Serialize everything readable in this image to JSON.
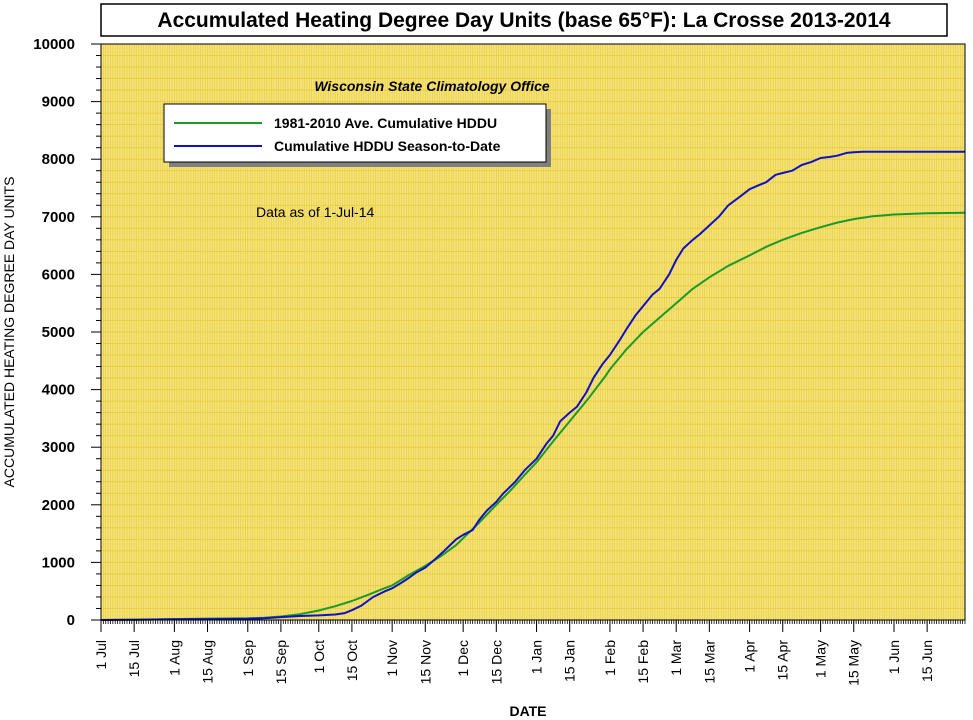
{
  "chart_data": {
    "type": "line",
    "title": "Accumulated Heating Degree Day Units (base 65°F): La Crosse 2013-2014",
    "subtitle": "Wisconsin State Climatology Office",
    "annotation": "Data as of 1-Jul-14",
    "xlabel": "DATE",
    "ylabel": "ACCUMULATED HEATING DEGREE DAY UNITS",
    "ylim": [
      0,
      10000
    ],
    "yticks": [
      0,
      1000,
      2000,
      3000,
      4000,
      5000,
      6000,
      7000,
      8000,
      9000,
      10000
    ],
    "x_unit": "days since 1 Jul",
    "xlim": [
      0,
      365
    ],
    "xticks": [
      {
        "label": "1 Jul",
        "day": 0
      },
      {
        "label": "15 Jul",
        "day": 14
      },
      {
        "label": "1 Aug",
        "day": 31
      },
      {
        "label": "15 Aug",
        "day": 45
      },
      {
        "label": "1 Sep",
        "day": 62
      },
      {
        "label": "15 Sep",
        "day": 76
      },
      {
        "label": "1 Oct",
        "day": 92
      },
      {
        "label": "15 Oct",
        "day": 106
      },
      {
        "label": "1 Nov",
        "day": 123
      },
      {
        "label": "15 Nov",
        "day": 137
      },
      {
        "label": "1 Dec",
        "day": 153
      },
      {
        "label": "15 Dec",
        "day": 167
      },
      {
        "label": "1 Jan",
        "day": 184
      },
      {
        "label": "15 Jan",
        "day": 198
      },
      {
        "label": "1 Feb",
        "day": 215
      },
      {
        "label": "15 Feb",
        "day": 229
      },
      {
        "label": "1 Mar",
        "day": 243
      },
      {
        "label": "15 Mar",
        "day": 257
      },
      {
        "label": "1 Apr",
        "day": 274
      },
      {
        "label": "15 Apr",
        "day": 288
      },
      {
        "label": "1 May",
        "day": 304
      },
      {
        "label": "15 May",
        "day": 318
      },
      {
        "label": "1 Jun",
        "day": 335
      },
      {
        "label": "15 Jun",
        "day": 349
      }
    ],
    "grid": true,
    "legend_position": "top-left",
    "colors": {
      "plot_background": "#f6e27a",
      "grid": "#e5cc3a"
    },
    "series": [
      {
        "name": "1981-2010 Ave. Cumulative HDDU",
        "color": "#1a9a2a",
        "points": [
          [
            0,
            0
          ],
          [
            14,
            5
          ],
          [
            31,
            15
          ],
          [
            45,
            25
          ],
          [
            62,
            30
          ],
          [
            69,
            40
          ],
          [
            76,
            60
          ],
          [
            84,
            100
          ],
          [
            92,
            165
          ],
          [
            99,
            240
          ],
          [
            106,
            330
          ],
          [
            113,
            440
          ],
          [
            119,
            540
          ],
          [
            123,
            600
          ],
          [
            130,
            780
          ],
          [
            137,
            940
          ],
          [
            144,
            1120
          ],
          [
            150,
            1300
          ],
          [
            153,
            1420
          ],
          [
            160,
            1700
          ],
          [
            167,
            2000
          ],
          [
            173,
            2250
          ],
          [
            179,
            2520
          ],
          [
            184,
            2740
          ],
          [
            191,
            3100
          ],
          [
            198,
            3450
          ],
          [
            206,
            3850
          ],
          [
            213,
            4230
          ],
          [
            215,
            4350
          ],
          [
            222,
            4700
          ],
          [
            229,
            5000
          ],
          [
            236,
            5250
          ],
          [
            243,
            5500
          ],
          [
            250,
            5750
          ],
          [
            257,
            5950
          ],
          [
            265,
            6150
          ],
          [
            274,
            6330
          ],
          [
            281,
            6480
          ],
          [
            288,
            6600
          ],
          [
            296,
            6720
          ],
          [
            304,
            6820
          ],
          [
            311,
            6900
          ],
          [
            318,
            6960
          ],
          [
            326,
            7010
          ],
          [
            335,
            7040
          ],
          [
            349,
            7060
          ],
          [
            365,
            7070
          ]
        ]
      },
      {
        "name": "Cumulative HDDU Season-to-Date",
        "color": "#1010c8",
        "points": [
          [
            0,
            0
          ],
          [
            14,
            5
          ],
          [
            31,
            12
          ],
          [
            45,
            15
          ],
          [
            62,
            20
          ],
          [
            69,
            30
          ],
          [
            76,
            50
          ],
          [
            84,
            70
          ],
          [
            92,
            80
          ],
          [
            99,
            95
          ],
          [
            103,
            120
          ],
          [
            106,
            170
          ],
          [
            110,
            250
          ],
          [
            115,
            400
          ],
          [
            120,
            500
          ],
          [
            123,
            550
          ],
          [
            127,
            650
          ],
          [
            130,
            730
          ],
          [
            133,
            820
          ],
          [
            137,
            910
          ],
          [
            141,
            1050
          ],
          [
            145,
            1200
          ],
          [
            150,
            1400
          ],
          [
            153,
            1480
          ],
          [
            157,
            1560
          ],
          [
            160,
            1750
          ],
          [
            163,
            1900
          ],
          [
            167,
            2050
          ],
          [
            170,
            2200
          ],
          [
            175,
            2400
          ],
          [
            179,
            2600
          ],
          [
            184,
            2800
          ],
          [
            188,
            3050
          ],
          [
            191,
            3200
          ],
          [
            194,
            3450
          ],
          [
            198,
            3600
          ],
          [
            201,
            3700
          ],
          [
            205,
            3950
          ],
          [
            208,
            4200
          ],
          [
            212,
            4450
          ],
          [
            215,
            4600
          ],
          [
            219,
            4850
          ],
          [
            222,
            5050
          ],
          [
            226,
            5300
          ],
          [
            229,
            5450
          ],
          [
            233,
            5650
          ],
          [
            236,
            5750
          ],
          [
            240,
            6000
          ],
          [
            243,
            6250
          ],
          [
            246,
            6450
          ],
          [
            250,
            6600
          ],
          [
            253,
            6700
          ],
          [
            257,
            6850
          ],
          [
            261,
            7000
          ],
          [
            265,
            7200
          ],
          [
            270,
            7350
          ],
          [
            274,
            7480
          ],
          [
            278,
            7550
          ],
          [
            281,
            7600
          ],
          [
            285,
            7730
          ],
          [
            288,
            7760
          ],
          [
            292,
            7800
          ],
          [
            296,
            7900
          ],
          [
            300,
            7950
          ],
          [
            304,
            8020
          ],
          [
            308,
            8040
          ],
          [
            311,
            8060
          ],
          [
            315,
            8110
          ],
          [
            318,
            8120
          ],
          [
            322,
            8130
          ],
          [
            326,
            8130
          ],
          [
            349,
            8130
          ],
          [
            365,
            8130
          ]
        ]
      }
    ]
  }
}
